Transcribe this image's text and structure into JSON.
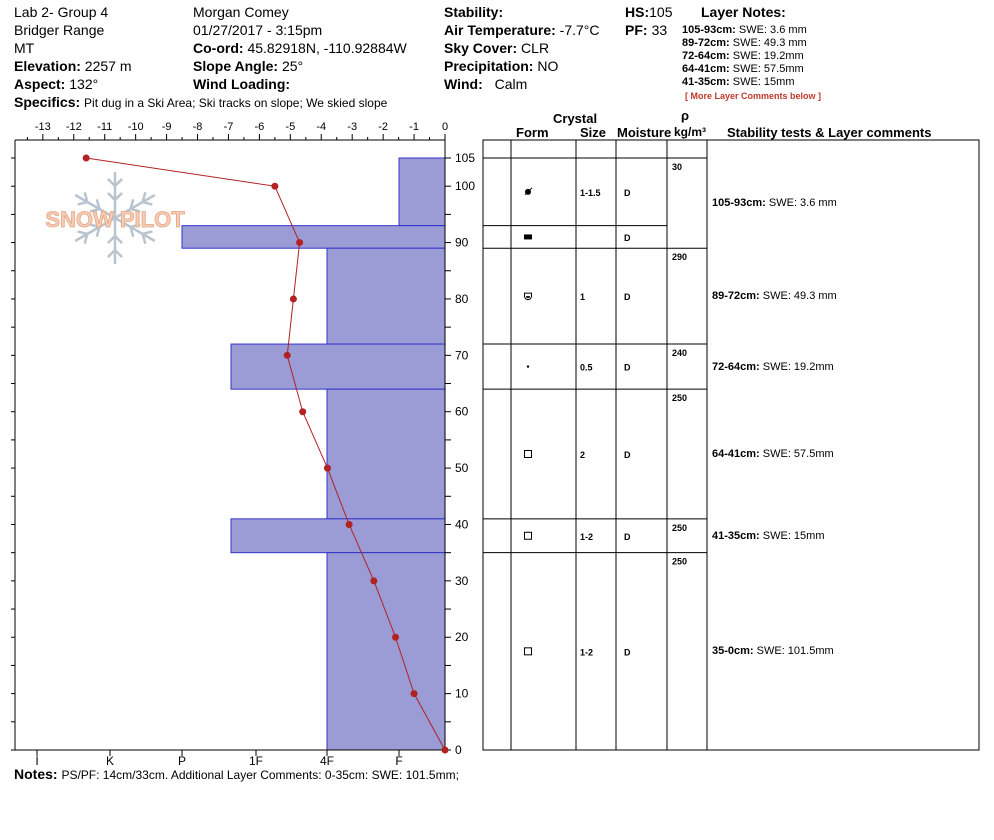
{
  "header": {
    "site": "Lab 2- Group 4",
    "range": "Bridger Range",
    "state": "MT",
    "observer": "Morgan Comey",
    "datetime": "01/27/2017 - 3:15pm",
    "elevation_label": "Elevation:",
    "elevation": "2257 m",
    "aspect_label": "Aspect:",
    "aspect": "132°",
    "coord_label": "Co-ord:",
    "coord": "45.82918N, -110.92884W",
    "slope_label": "Slope Angle:",
    "slope": "25°",
    "wind_loading_label": "Wind Loading:",
    "wind_loading": "",
    "stability_label": "Stability:",
    "stability": "",
    "air_temp_label": "Air Temperature:",
    "air_temp": "-7.7°C",
    "sky_label": "Sky Cover:",
    "sky": "CLR",
    "precip_label": "Precipitation:",
    "precip": "NO",
    "wind_label": "Wind:",
    "wind": "Calm",
    "hs_label": "HS:",
    "hs": "105",
    "pf_label": "PF:",
    "pf": "33",
    "specifics_label": "Specifics:",
    "specifics": "Pit dug in a Ski Area; Ski tracks on slope; We skied slope"
  },
  "layer_notes": {
    "title": "Layer Notes:",
    "items": [
      {
        "range": "105-93cm:",
        "text": "SWE: 3.6 mm"
      },
      {
        "range": "89-72cm:",
        "text": "SWE: 49.3 mm"
      },
      {
        "range": "72-64cm:",
        "text": "SWE: 19.2mm"
      },
      {
        "range": "64-41cm:",
        "text": "SWE: 57.5mm"
      },
      {
        "range": "41-35cm:",
        "text": "SWE: 15mm"
      }
    ],
    "more": "[ More Layer Comments below ]"
  },
  "logo_text": "SNOW PILOT",
  "table_header": {
    "crystal": "Crystal",
    "form": "Form",
    "size": "Size",
    "moisture": "Moisture",
    "rho": "ρ",
    "density_unit": "kg/m³",
    "stability": "Stability tests & Layer comments"
  },
  "layers": [
    {
      "size": "1-1.5",
      "moisture": "D",
      "form": "rounding-facet"
    },
    {
      "size": "",
      "moisture": "D",
      "form": "crust"
    },
    {
      "size": "1",
      "moisture": "D",
      "form": "rounding-depth-hoar"
    },
    {
      "size": "0.5",
      "moisture": "D",
      "form": "small-grain"
    },
    {
      "size": "2",
      "moisture": "D",
      "form": "facet"
    },
    {
      "size": "1-2",
      "moisture": "D",
      "form": "facet"
    },
    {
      "size": "1-2",
      "moisture": "D",
      "form": "facet"
    }
  ],
  "densities": [
    "30",
    "290",
    "240",
    "250",
    "250",
    "250"
  ],
  "layer_comments": [
    {
      "range": "105-93cm:",
      "text": "SWE: 3.6 mm"
    },
    {
      "range": "89-72cm:",
      "text": "SWE: 49.3 mm"
    },
    {
      "range": "72-64cm:",
      "text": "SWE: 19.2mm"
    },
    {
      "range": "64-41cm:",
      "text": "SWE: 57.5mm"
    },
    {
      "range": "41-35cm:",
      "text": "SWE: 15mm"
    },
    {
      "range": "35-0cm:",
      "text": "SWE: 101.5mm"
    }
  ],
  "notes_label": "Notes:",
  "notes": "PS/PF: 14cm/33cm. Additional Layer Comments: 0-35cm: SWE: 101.5mm;",
  "chart_data": {
    "type": "line",
    "temp_axis": {
      "ticks": [
        "-13",
        "-12",
        "-11",
        "-10",
        "-9",
        "-8",
        "-7",
        "-6",
        "-5",
        "-4",
        "-3",
        "-2",
        "-1",
        "0"
      ],
      "range": [
        -13.9,
        0
      ]
    },
    "height_axis": {
      "ticks": [
        "105",
        "100",
        "90",
        "80",
        "70",
        "60",
        "50",
        "40",
        "30",
        "20",
        "10",
        "0"
      ],
      "range": [
        0,
        105
      ]
    },
    "hardness_axis": {
      "ticks": [
        "I",
        "K",
        "P",
        "1F",
        "4F",
        "F"
      ]
    },
    "temperature_profile": [
      {
        "h": 105,
        "t": -11.6
      },
      {
        "h": 100,
        "t": -5.5
      },
      {
        "h": 90,
        "t": -4.7
      },
      {
        "h": 80,
        "t": -4.9
      },
      {
        "h": 70,
        "t": -5.1
      },
      {
        "h": 60,
        "t": -4.6
      },
      {
        "h": 50,
        "t": -3.8
      },
      {
        "h": 40,
        "t": -3.1
      },
      {
        "h": 30,
        "t": -2.3
      },
      {
        "h": 20,
        "t": -1.6
      },
      {
        "h": 10,
        "t": -1.0
      },
      {
        "h": 0,
        "t": 0
      }
    ],
    "hardness_layers": [
      {
        "top": 105,
        "bottom": 93,
        "hardness": "F+"
      },
      {
        "top": 93,
        "bottom": 89,
        "hardness": "P-"
      },
      {
        "top": 89,
        "bottom": 72,
        "hardness": "4F"
      },
      {
        "top": 72,
        "bottom": 64,
        "hardness": "1F-"
      },
      {
        "top": 64,
        "bottom": 41,
        "hardness": "4F"
      },
      {
        "top": 41,
        "bottom": 35,
        "hardness": "1F-"
      },
      {
        "top": 35,
        "bottom": 0,
        "hardness": "4F"
      }
    ],
    "colors": {
      "bars": "#9b9bd6",
      "bar_edge": "#3333cc",
      "line": "#b22222"
    }
  }
}
